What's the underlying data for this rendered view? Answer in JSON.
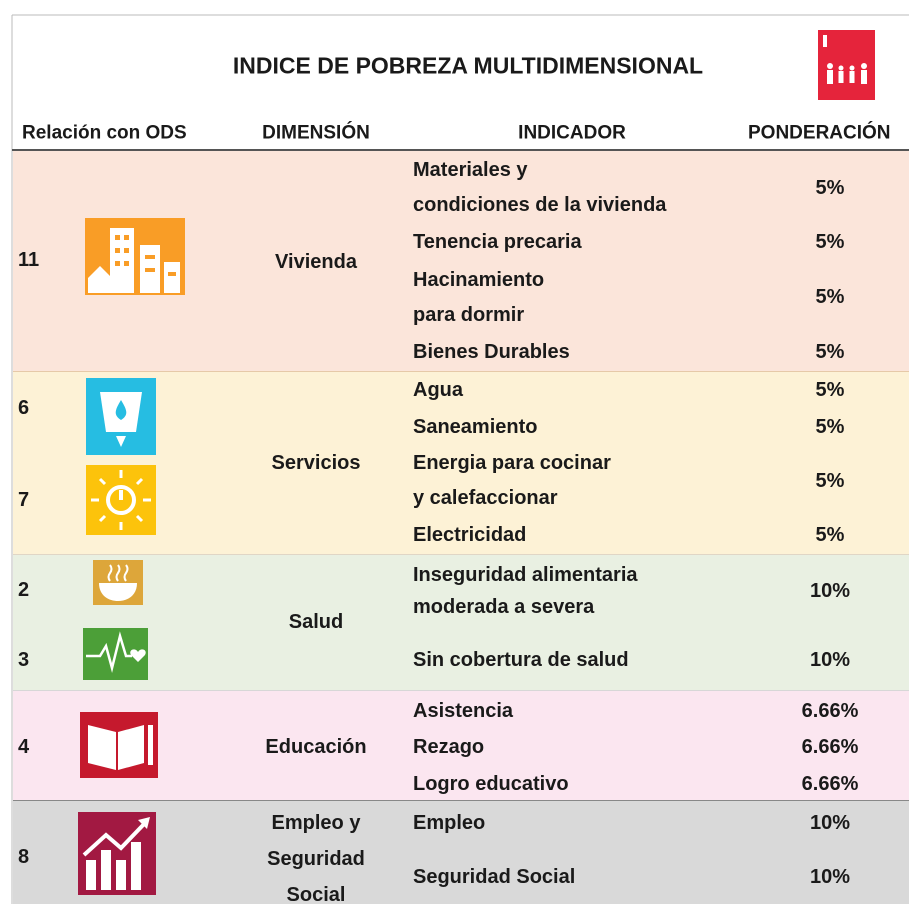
{
  "title": "INDICE DE POBREZA MULTIDIMENSIONAL",
  "header": [
    "Relación con ODS",
    "DIMENSIÓN",
    "INDICADOR",
    "PONDERACIÓN"
  ],
  "groups": [
    {
      "ods": [
        "11"
      ],
      "dimension": [
        "Vivienda"
      ],
      "indicators": [
        {
          "name": [
            "Materiales y",
            "condiciones de la vivienda"
          ],
          "weight": "5%"
        },
        {
          "name": [
            "Tenencia precaria"
          ],
          "weight": "5%"
        },
        {
          "name": [
            "Hacinamiento",
            "para dormir"
          ],
          "weight": "5%"
        },
        {
          "name": [
            "Bienes Durables"
          ],
          "weight": "5%"
        }
      ]
    },
    {
      "ods": [
        "6",
        "7"
      ],
      "dimension": [
        "Servicios"
      ],
      "indicators": [
        {
          "name": [
            "Agua"
          ],
          "weight": "5%"
        },
        {
          "name": [
            "Saneamiento"
          ],
          "weight": "5%"
        },
        {
          "name": [
            "Energia para cocinar",
            "y calefaccionar"
          ],
          "weight": "5%"
        },
        {
          "name": [
            "Electricidad"
          ],
          "weight": "5%"
        }
      ]
    },
    {
      "ods": [
        "2",
        "3"
      ],
      "dimension": [
        "Salud"
      ],
      "indicators": [
        {
          "name": [
            "Inseguridad alimentaria",
            "moderada a severa"
          ],
          "weight": "10%"
        },
        {
          "name": [
            "Sin cobertura de salud"
          ],
          "weight": "10%"
        }
      ]
    },
    {
      "ods": [
        "4"
      ],
      "dimension": [
        "Educación"
      ],
      "indicators": [
        {
          "name": [
            "Asistencia"
          ],
          "weight": "6.66%"
        },
        {
          "name": [
            "Rezago"
          ],
          "weight": "6.66%"
        },
        {
          "name": [
            "Logro educativo"
          ],
          "weight": "6.66%"
        }
      ]
    },
    {
      "ods": [
        "8"
      ],
      "dimension": [
        "Empleo y",
        "Seguridad",
        "Social"
      ],
      "indicators": [
        {
          "name": [
            "Empleo"
          ],
          "weight": "10%"
        },
        {
          "name": [
            "Seguridad Social"
          ],
          "weight": "10%"
        }
      ]
    }
  ]
}
